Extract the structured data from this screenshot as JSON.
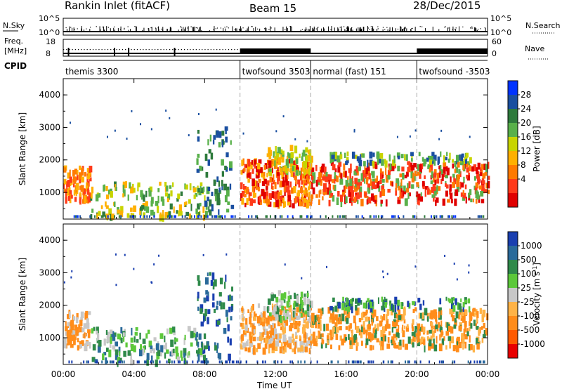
{
  "title": {
    "left": "Rankin Inlet (fitACF)",
    "center": "Beam 15",
    "right": "28/Dec/2015"
  },
  "strip": {
    "nsky_label": "N.Sky",
    "nsky_ticks": [
      "10^5",
      "10^0"
    ],
    "nsearch_label": "N.Search",
    "nsearch_ticks": [
      "10^5",
      "10^0"
    ],
    "freq_label_1": "Freq.",
    "freq_label_2": "[MHz]",
    "freq_ticks": [
      "18",
      "8"
    ],
    "nave_label": "Nave",
    "nave_ticks": [
      "60",
      "0"
    ],
    "cpid_label": "CPID",
    "modes": [
      {
        "label": "themis 3300",
        "start_h": 0
      },
      {
        "label": "twofsound 3503",
        "start_h": 10
      },
      {
        "label": "normal (fast) 151",
        "start_h": 14
      },
      {
        "label": "twofsound -3503",
        "start_h": 20
      }
    ]
  },
  "chart_data": [
    {
      "type": "heatmap",
      "name": "power",
      "ylabel": "Slant Range [km]",
      "yticks": [
        "4000",
        "3000",
        "2000",
        "1000"
      ],
      "ylim": [
        180,
        4500
      ],
      "colorbar_label": "Power [dB]",
      "colorbar_ticks": [
        "28",
        "24",
        "20",
        "16",
        "12",
        "8",
        "4"
      ],
      "colors": [
        "#0033ff",
        "#1a4fa0",
        "#2e7a3c",
        "#58b04a",
        "#c8d400",
        "#ffb000",
        "#ff7a00",
        "#ff3a1a",
        "#e00000"
      ]
    },
    {
      "type": "heatmap",
      "name": "velocity",
      "ylabel": "Slant Range [km]",
      "yticks": [
        "4000",
        "3000",
        "2000",
        "1000"
      ],
      "ylim": [
        180,
        4500
      ],
      "xlabel": "Time UT",
      "xticks": [
        "00:00",
        "04:00",
        "08:00",
        "12:00",
        "16:00",
        "20:00",
        "00:00"
      ],
      "xlim_hours": [
        0,
        24
      ],
      "colorbar_label": "Velocity [m s^-1]",
      "colorbar_ticks": [
        "1000",
        "500",
        "100",
        "25",
        "-25",
        "-100",
        "-500",
        "-1000"
      ],
      "colors": [
        "#1a3fb0",
        "#2a6a9a",
        "#2f8a4a",
        "#5cc83a",
        "#c8c8c8",
        "#ffb347",
        "#ff8c1a",
        "#ff5a00",
        "#e80000"
      ]
    }
  ]
}
